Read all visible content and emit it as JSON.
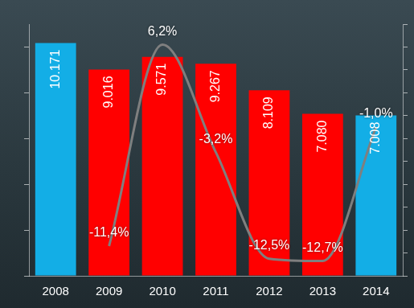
{
  "chart_data": {
    "type": "bar",
    "categories": [
      "2008",
      "2009",
      "2010",
      "2011",
      "2012",
      "2013",
      "2014"
    ],
    "series": [
      {
        "type": "bar",
        "colors": [
          "#13aee6",
          "#ff0000",
          "#ff0000",
          "#ff0000",
          "#ff0000",
          "#ff0000",
          "#13aee6"
        ],
        "values": [
          10171,
          9016,
          9571,
          9267,
          8109,
          7080,
          7008
        ],
        "value_labels": [
          "10.171",
          "9.016",
          "9.571",
          "9.267",
          "8.109",
          "7.080",
          "7.008"
        ]
      },
      {
        "type": "line",
        "axis": "y2",
        "color": "#7f7f7f",
        "marker": "none",
        "line_style": "smooth",
        "values": [
          null,
          -11.4,
          6.2,
          -3.2,
          -12.5,
          -12.7,
          -1.0
        ],
        "value_labels": [
          null,
          "-11,4%",
          "6,2%",
          "-3,2%",
          "-12,5%",
          "-12,7%",
          "-1,0%"
        ]
      }
    ],
    "ylim": [
      0,
      11000
    ],
    "yticks": [
      0,
      2000,
      4000,
      6000,
      8000,
      10000
    ],
    "y2lim": [
      -14,
      8
    ],
    "y2ticks": [
      -14,
      -12,
      -10,
      -8,
      -6,
      -4,
      -2,
      0,
      2,
      4,
      6,
      8
    ],
    "grid": false,
    "data_labels": true,
    "tick_labels": "x"
  }
}
